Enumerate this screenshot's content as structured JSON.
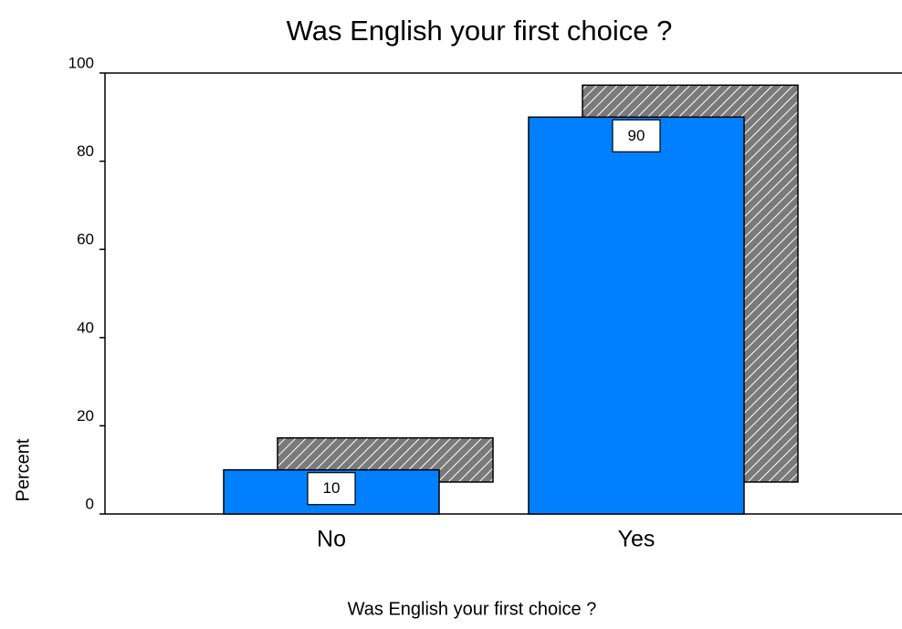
{
  "chart_data": {
    "type": "bar",
    "title": "Was English your first choice ?",
    "x_label": "Was English your first choice ?",
    "y_label": "Percent",
    "categories": [
      "No",
      "Yes"
    ],
    "values": [
      10,
      90
    ],
    "color": "#0080ff",
    "ylim": [
      0,
      100
    ],
    "yticks": [
      0,
      20,
      40,
      60,
      80,
      100
    ],
    "grid": false
  }
}
